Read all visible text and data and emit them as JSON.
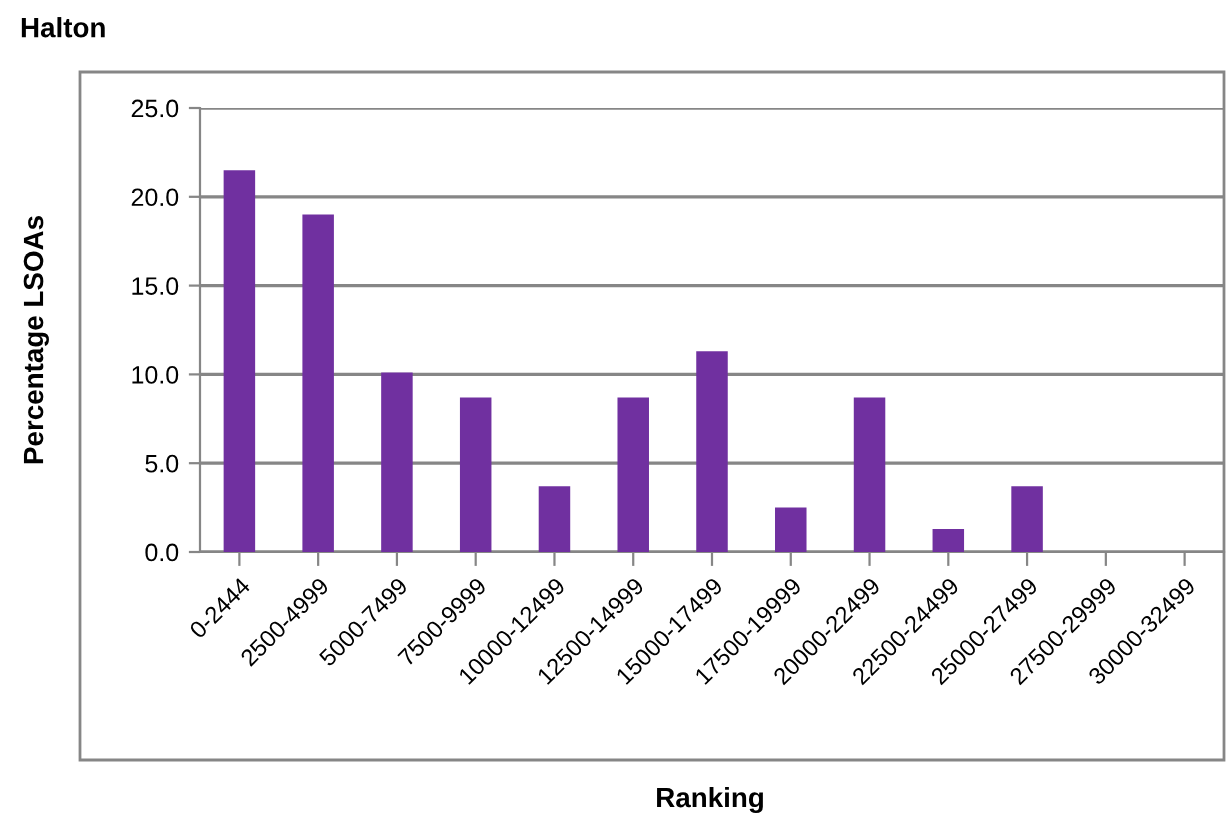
{
  "chart_data": {
    "type": "bar",
    "title": "Halton",
    "xlabel": "Ranking",
    "ylabel": "Percentage LSOAs",
    "categories": [
      "0-2444",
      "2500-4999",
      "5000-7499",
      "7500-9999",
      "10000-12499",
      "12500-14999",
      "15000-17499",
      "17500-19999",
      "20000-22499",
      "22500-24499",
      "25000-27499",
      "27500-29999",
      "30000-32499"
    ],
    "values": [
      21.5,
      19.0,
      10.1,
      8.7,
      3.7,
      8.7,
      11.3,
      2.5,
      8.7,
      1.3,
      3.7,
      0,
      0
    ],
    "color": "#7030a0",
    "ylim": [
      0,
      25
    ],
    "yticks": [
      {
        "value": 0,
        "label": "0.0"
      },
      {
        "value": 5,
        "label": "5.0"
      },
      {
        "value": 10,
        "label": "10.0"
      },
      {
        "value": 15,
        "label": "15.0"
      },
      {
        "value": 20,
        "label": "20.0"
      },
      {
        "value": 25,
        "label": "25.0"
      }
    ],
    "grid": "y",
    "legend": false
  }
}
